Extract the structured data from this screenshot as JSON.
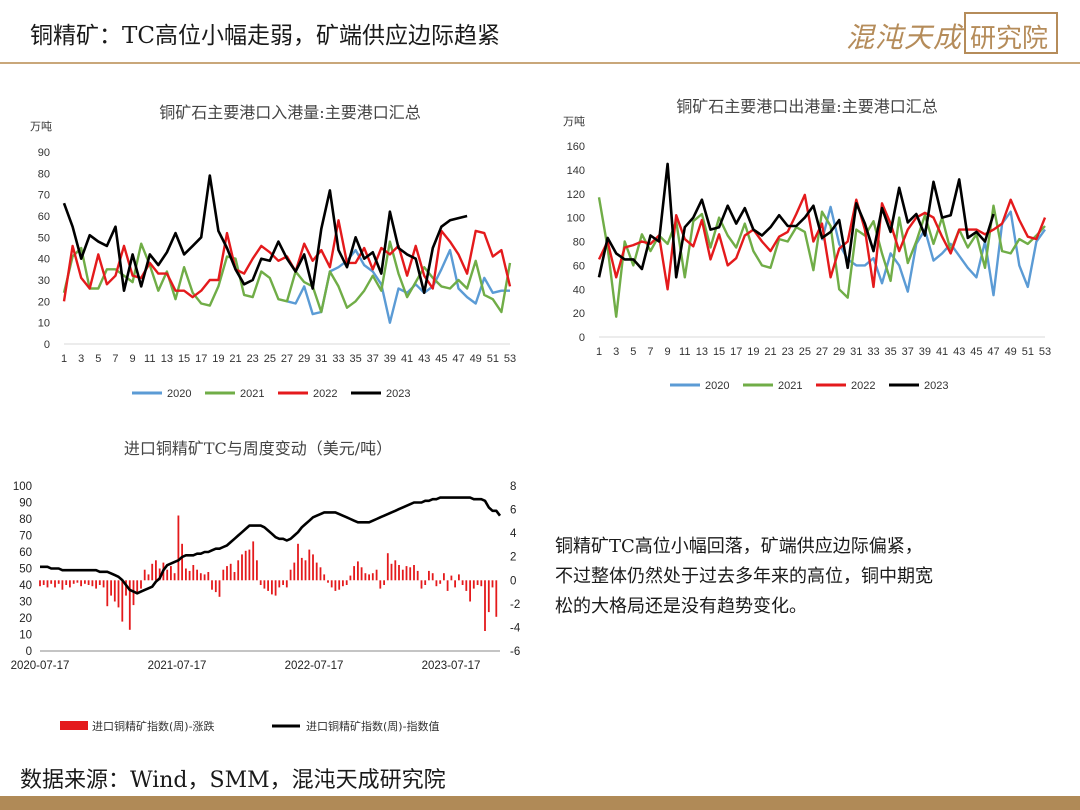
{
  "header": {
    "title": "铜精矿：TC高位小幅走弱，矿端供应边际趋紧",
    "logo_text": "混沌天成",
    "logo_box": "研究院"
  },
  "footer": {
    "source": "数据来源：Wind，SMM，混沌天成研究院"
  },
  "comment": {
    "lines": [
      "铜精矿TC高位小幅回落，矿端供应边际偏紧，",
      "不过整体仍然处于过去多年来的高位，铜中期宽",
      "松的大格局还是没有趋势变化。"
    ]
  },
  "colors": {
    "2020": "#5b9bd5",
    "2021": "#70ad47",
    "2022": "#e41a1c",
    "2023": "#000000",
    "bar": "#e41a1c",
    "accent": "#b58c5a"
  },
  "chart_data": [
    {
      "type": "line",
      "title": "铜矿石主要港口入港量:主要港口汇总",
      "unit": "万吨",
      "ylim": [
        0,
        90
      ],
      "yticks": [
        0,
        10,
        20,
        30,
        40,
        50,
        60,
        70,
        80,
        90
      ],
      "xticks": [
        "1",
        "3",
        "5",
        "7",
        "9",
        "11",
        "13",
        "15",
        "17",
        "19",
        "21",
        "23",
        "25",
        "27",
        "29",
        "31",
        "33",
        "35",
        "37",
        "39",
        "41",
        "43",
        "45",
        "47",
        "49",
        "51",
        "53"
      ],
      "series": [
        {
          "name": "2020",
          "color": "#5b9bd5",
          "values": [
            null,
            null,
            null,
            null,
            null,
            null,
            null,
            null,
            null,
            null,
            null,
            null,
            null,
            null,
            null,
            null,
            null,
            null,
            null,
            null,
            null,
            null,
            null,
            null,
            null,
            null,
            20,
            19,
            27,
            14,
            15,
            34,
            36,
            39,
            44,
            37,
            34,
            28,
            10,
            26,
            24,
            28,
            24,
            27,
            35,
            44,
            26,
            22,
            19,
            31,
            24,
            25,
            25
          ]
        },
        {
          "name": "2021",
          "color": "#70ad47",
          "values": [
            24,
            41,
            45,
            26,
            26,
            35,
            35,
            32,
            29,
            47,
            37,
            25,
            34,
            21,
            36,
            24,
            19,
            18,
            27,
            41,
            40,
            23,
            22,
            34,
            31,
            21,
            20,
            34,
            29,
            27,
            15,
            34,
            27,
            17,
            20,
            25,
            32,
            25,
            48,
            33,
            22,
            29,
            36,
            31,
            27,
            26,
            30,
            26,
            39,
            23,
            21,
            15,
            38
          ]
        },
        {
          "name": "2022",
          "color": "#e41a1c",
          "values": [
            20,
            46,
            31,
            26,
            42,
            28,
            32,
            46,
            32,
            31,
            38,
            33,
            33,
            25,
            25,
            22,
            25,
            30,
            30,
            52,
            35,
            33,
            40,
            46,
            43,
            39,
            41,
            34,
            47,
            39,
            44,
            36,
            58,
            38,
            38,
            45,
            35,
            45,
            42,
            46,
            32,
            46,
            32,
            26,
            53,
            48,
            42,
            33,
            53,
            52,
            41,
            44,
            27
          ]
        },
        {
          "name": "2023",
          "color": "#000000",
          "values": [
            66,
            55,
            40,
            51,
            48,
            46,
            55,
            25,
            42,
            27,
            42,
            37,
            43,
            52,
            42,
            46,
            50,
            79,
            53,
            45,
            35,
            28,
            30,
            40,
            39,
            48,
            40,
            34,
            42,
            26,
            54,
            72,
            44,
            36,
            50,
            40,
            43,
            33,
            62,
            45,
            42,
            40,
            24,
            45,
            55,
            58,
            59,
            60,
            null,
            null,
            null,
            null,
            null
          ]
        }
      ],
      "legend": [
        "2020",
        "2021",
        "2022",
        "2023"
      ]
    },
    {
      "type": "line",
      "title": "铜矿石主要港口出港量:主要港口汇总",
      "unit": "万吨",
      "ylim": [
        0,
        160
      ],
      "yticks": [
        0,
        20,
        40,
        60,
        80,
        100,
        120,
        140,
        160
      ],
      "xticks": [
        "1",
        "3",
        "5",
        "7",
        "9",
        "11",
        "13",
        "15",
        "17",
        "19",
        "21",
        "23",
        "25",
        "27",
        "29",
        "31",
        "33",
        "35",
        "37",
        "39",
        "41",
        "43",
        "45",
        "47",
        "49",
        "51",
        "53"
      ],
      "series": [
        {
          "name": "2020",
          "color": "#5b9bd5",
          "values": [
            null,
            null,
            null,
            null,
            null,
            null,
            null,
            null,
            null,
            null,
            null,
            null,
            null,
            null,
            null,
            null,
            null,
            null,
            null,
            null,
            null,
            null,
            null,
            null,
            null,
            null,
            81,
            109,
            78,
            65,
            60,
            60,
            66,
            45,
            70,
            60,
            38,
            78,
            90,
            64,
            70,
            78,
            68,
            58,
            50,
            80,
            35,
            95,
            105,
            60,
            42,
            80,
            90
          ]
        },
        {
          "name": "2021",
          "color": "#70ad47",
          "values": [
            117,
            75,
            17,
            80,
            60,
            86,
            72,
            85,
            78,
            97,
            50,
            97,
            103,
            75,
            100,
            85,
            75,
            95,
            72,
            60,
            58,
            82,
            80,
            92,
            88,
            56,
            105,
            93,
            40,
            33,
            90,
            85,
            97,
            70,
            47,
            100,
            62,
            80,
            102,
            78,
            100,
            72,
            90,
            75,
            86,
            58,
            110,
            72,
            70,
            82,
            78,
            85,
            93
          ]
        },
        {
          "name": "2022",
          "color": "#e41a1c",
          "values": [
            65,
            80,
            50,
            75,
            77,
            80,
            78,
            85,
            40,
            102,
            82,
            76,
            98,
            65,
            86,
            60,
            66,
            85,
            90,
            80,
            72,
            84,
            88,
            103,
            119,
            80,
            95,
            50,
            74,
            80,
            115,
            90,
            42,
            112,
            95,
            72,
            90,
            100,
            104,
            100,
            84,
            70,
            90,
            90,
            90,
            86,
            90,
            95,
            115,
            98,
            84,
            82,
            100
          ]
        },
        {
          "name": "2023",
          "color": "#000000",
          "values": [
            50,
            83,
            70,
            65,
            65,
            57,
            85,
            80,
            145,
            50,
            92,
            100,
            115,
            90,
            92,
            110,
            95,
            108,
            90,
            85,
            92,
            102,
            93,
            93,
            100,
            110,
            83,
            88,
            98,
            58,
            112,
            95,
            72,
            108,
            88,
            125,
            96,
            103,
            85,
            130,
            100,
            102,
            132,
            83,
            88,
            80,
            103,
            null,
            null,
            null,
            null,
            null,
            null
          ]
        }
      ],
      "legend": [
        "2020",
        "2021",
        "2022",
        "2023"
      ]
    },
    {
      "type": "bar+line",
      "title": "进口铜精矿TC与周度变动（美元/吨）",
      "x_start": "2020-07-17",
      "x_end": "2023-09-15",
      "xticks": [
        "2020-07-17",
        "2021-07-17",
        "2022-07-17",
        "2023-07-17"
      ],
      "ylim_left": [
        0,
        100
      ],
      "yticks_left": [
        0,
        10,
        20,
        30,
        40,
        50,
        60,
        70,
        80,
        90,
        100
      ],
      "ylim_right": [
        -6,
        8
      ],
      "yticks_right": [
        -6,
        -4,
        -2,
        0,
        2,
        4,
        6,
        8
      ],
      "line": {
        "name": "进口铜精矿指数(周)-指数值",
        "color": "#000000",
        "values": [
          51,
          51,
          51,
          50,
          50,
          50,
          49,
          49,
          49,
          49,
          49,
          49,
          49,
          49,
          49,
          49,
          48,
          48,
          48,
          47,
          46,
          45,
          43,
          40,
          37,
          36,
          35,
          36,
          37,
          38,
          39,
          42,
          44,
          49,
          52,
          53,
          54,
          55,
          57,
          58,
          58,
          58,
          59,
          59,
          60,
          60,
          61,
          62,
          62,
          63,
          64,
          66,
          68,
          70,
          72,
          74,
          76,
          76,
          76,
          76,
          75,
          73,
          71,
          69,
          68,
          68,
          67,
          68,
          70,
          72,
          75,
          77,
          79,
          81,
          82,
          83,
          84,
          84,
          84,
          84,
          83,
          82,
          81,
          80,
          79,
          78,
          78,
          78,
          78,
          79,
          80,
          81,
          82,
          83,
          84,
          85,
          86,
          87,
          88,
          89,
          90,
          90,
          90,
          91,
          91,
          92,
          92,
          93,
          93,
          93,
          93,
          93,
          93,
          93,
          93,
          93,
          92,
          92,
          92,
          91,
          87,
          85,
          85,
          82
        ]
      },
      "bars": {
        "name": "进口铜精矿指数(周)-涨跌",
        "color": "#e41a1c",
        "values": [
          -0.5,
          -0.4,
          -0.6,
          -0.3,
          -0.6,
          -0.3,
          -0.8,
          -0.4,
          -0.6,
          -0.3,
          -0.2,
          -0.5,
          -0.3,
          -0.4,
          -0.5,
          -0.7,
          -0.4,
          -0.6,
          -2.2,
          -1.3,
          -1.8,
          -2.3,
          -3.5,
          -1.3,
          -4.2,
          -2.1,
          -1.2,
          -0.7,
          0.9,
          0.5,
          1.4,
          1.7,
          1.0,
          1.5,
          0.9,
          1.2,
          0.6,
          5.5,
          3.1,
          1.0,
          0.8,
          1.3,
          0.9,
          0.6,
          0.5,
          0.7,
          -0.8,
          -1.0,
          -1.4,
          0.9,
          1.2,
          1.4,
          0.7,
          1.7,
          2.2,
          2.5,
          2.6,
          3.3,
          1.7,
          -0.4,
          -0.7,
          -0.9,
          -1.2,
          -1.3,
          -0.6,
          -0.4,
          -0.6,
          0.9,
          1.5,
          3.1,
          1.9,
          1.7,
          2.6,
          2.2,
          1.5,
          1.1,
          0.5,
          -0.2,
          -0.6,
          -0.9,
          -0.8,
          -0.5,
          -0.4,
          0.4,
          1.2,
          1.6,
          1.1,
          0.6,
          0.5,
          0.6,
          0.9,
          -0.7,
          -0.4,
          2.3,
          1.4,
          1.7,
          1.3,
          0.9,
          1.2,
          1.1,
          1.3,
          0.8,
          -0.7,
          -0.4,
          0.8,
          0.6,
          -0.5,
          -0.3,
          0.6,
          -0.9,
          0.4,
          -0.6,
          0.5,
          -0.4,
          -0.9,
          -1.8,
          -0.7,
          -0.4,
          -0.5,
          -4.3,
          -2.7,
          -0.6,
          -3.1
        ]
      },
      "legend": [
        "进口铜精矿指数(周)-涨跌",
        "进口铜精矿指数(周)-指数值"
      ]
    }
  ]
}
